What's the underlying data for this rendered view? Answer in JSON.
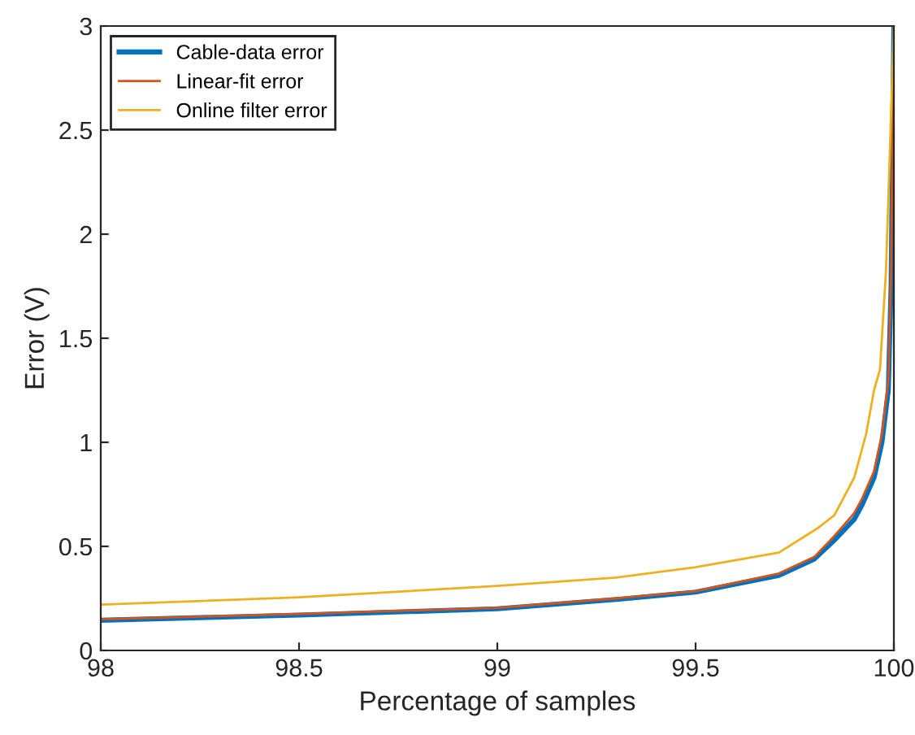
{
  "chart_data": {
    "type": "line",
    "xlabel": "Percentage of samples",
    "ylabel": "Error (V)",
    "xlim": [
      98,
      100
    ],
    "ylim": [
      0,
      3
    ],
    "xticks": [
      98,
      98.5,
      99,
      99.5,
      100
    ],
    "yticks": [
      0,
      0.5,
      1,
      1.5,
      2,
      2.5,
      3
    ],
    "grid": false,
    "legend": "top left",
    "x": [
      98,
      98.5,
      99,
      99.3,
      99.5,
      99.71,
      99.8,
      99.85,
      99.9,
      99.92,
      99.95,
      99.97,
      99.986,
      99.993,
      100
    ],
    "series": [
      {
        "name": "Cable-data error",
        "color": "#0072bd",
        "values": [
          0.145,
          0.17,
          0.2,
          0.245,
          0.28,
          0.36,
          0.44,
          0.53,
          0.63,
          0.7,
          0.83,
          1.0,
          1.25,
          1.75,
          3
        ]
      },
      {
        "name": "Linear-fit error",
        "color": "#d95319",
        "values": [
          0.15,
          0.175,
          0.205,
          0.25,
          0.285,
          0.37,
          0.45,
          0.55,
          0.66,
          0.73,
          0.86,
          1.04,
          1.3,
          1.82,
          3
        ]
      },
      {
        "name": "Online filter error",
        "color": "#edb120",
        "x": [
          98,
          98.5,
          99,
          99.3,
          99.5,
          99.71,
          99.81,
          99.85,
          99.9,
          99.93,
          99.95,
          99.965,
          99.98,
          99.99,
          100
        ],
        "values": [
          0.22,
          0.255,
          0.31,
          0.35,
          0.4,
          0.47,
          0.59,
          0.65,
          0.83,
          1.04,
          1.25,
          1.35,
          1.82,
          2.4,
          3
        ]
      }
    ]
  }
}
